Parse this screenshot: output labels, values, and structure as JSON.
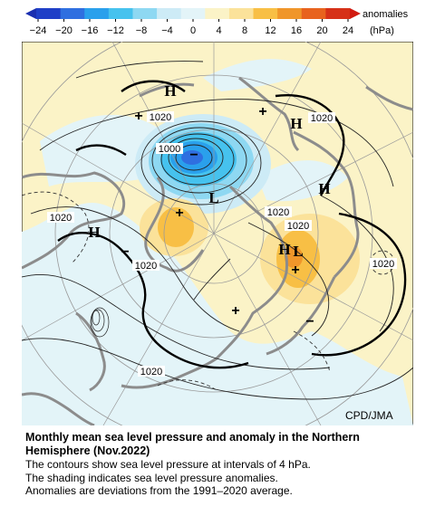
{
  "colorbar": {
    "ticks": [
      "−24",
      "−20",
      "−16",
      "−12",
      "−8",
      "−4",
      "0",
      "4",
      "8",
      "12",
      "16",
      "20",
      "24"
    ],
    "unit_line1": "anomalies",
    "unit_line2": "(hPa)",
    "colors": [
      "#1f3fc7",
      "#2f6fe0",
      "#2aa0ec",
      "#46c2ee",
      "#8ed8f2",
      "#cdebf6",
      "#e3f4f8",
      "#fbf3c7",
      "#fbe29a",
      "#f8bf45",
      "#f0962a",
      "#e8631e",
      "#d63118"
    ]
  },
  "map": {
    "high_markers": [
      "H",
      "H",
      "H",
      "H",
      "H"
    ],
    "low_markers": [
      "L",
      "L"
    ],
    "contour_labels": [
      "1020",
      "1020",
      "1000",
      "1020",
      "1020",
      "1020",
      "1020",
      "1020",
      "1020"
    ],
    "plus_markers": [
      "+",
      "+",
      "+",
      "+",
      "+"
    ],
    "minus_markers": [
      "−",
      "−",
      "−"
    ]
  },
  "credit": "CPD/JMA",
  "caption": {
    "title_line1": "Monthly mean sea level pressure and anomaly in the Northern",
    "title_line2": "Hemisphere (Nov.2022)",
    "line1": "The contours show sea level pressure at intervals of 4 hPa.",
    "line2": "The shading indicates sea level pressure anomalies.",
    "line3": "Anomalies are deviations from the 1991–2020 average."
  }
}
